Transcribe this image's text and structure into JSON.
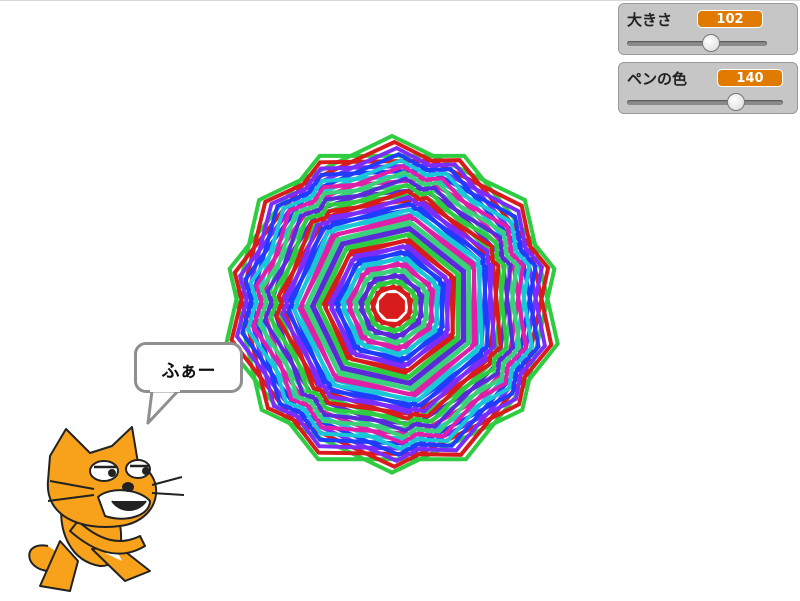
{
  "monitors": [
    {
      "label": "大きさ",
      "value": "102",
      "slider_fraction": 0.6
    },
    {
      "label": "ペンの色",
      "value": "140",
      "slider_fraction": 0.7
    }
  ],
  "speech_bubble": {
    "text": "ふぁー"
  },
  "drawing": {
    "shape": "seven-pointed star with nested heptagons",
    "colors": [
      "#2ecc40",
      "#d81b1b",
      "#7b2dff",
      "#1f3cff",
      "#19c7d6",
      "#e01fa8",
      "#3ad17a",
      "#5b2bd9"
    ]
  },
  "sprite": {
    "name": "scratch-cat",
    "body_color": "#f7a21a"
  }
}
